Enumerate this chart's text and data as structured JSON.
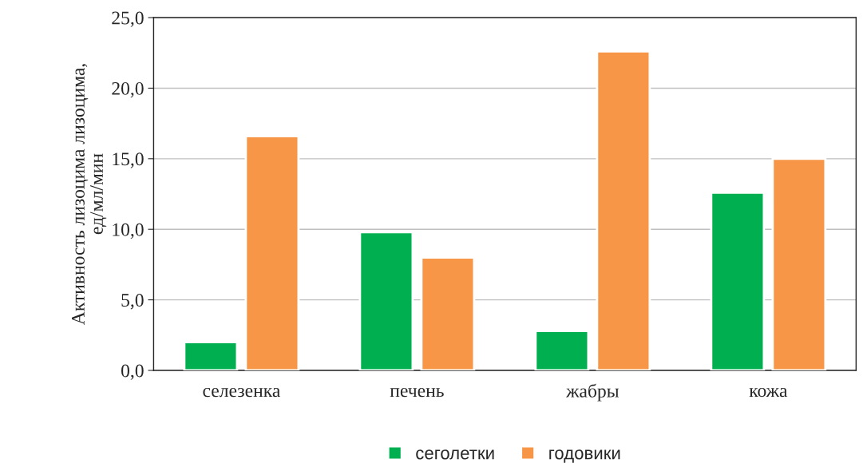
{
  "chart_data": {
    "type": "bar",
    "ylabel": "Активность лизоцима лизоцима,\nед/мл/мин",
    "categories": [
      "селезенка",
      "печень",
      "жабры",
      "кожа"
    ],
    "series": [
      {
        "name": "сеголетки",
        "color": "#00b050",
        "values": [
          2.0,
          9.8,
          2.8,
          12.6
        ]
      },
      {
        "name": "годовики",
        "color": "#f79646",
        "values": [
          16.6,
          8.0,
          22.6,
          15.0
        ]
      }
    ],
    "ylim": [
      0,
      25
    ],
    "yticks": [
      {
        "value": 0,
        "label": "0,0"
      },
      {
        "value": 5,
        "label": "5,0"
      },
      {
        "value": 10,
        "label": "10,0"
      },
      {
        "value": 15,
        "label": "15,0"
      },
      {
        "value": 20,
        "label": "20,0"
      },
      {
        "value": 25,
        "label": "25,0"
      }
    ],
    "grid": "y",
    "legend": "bottom"
  }
}
